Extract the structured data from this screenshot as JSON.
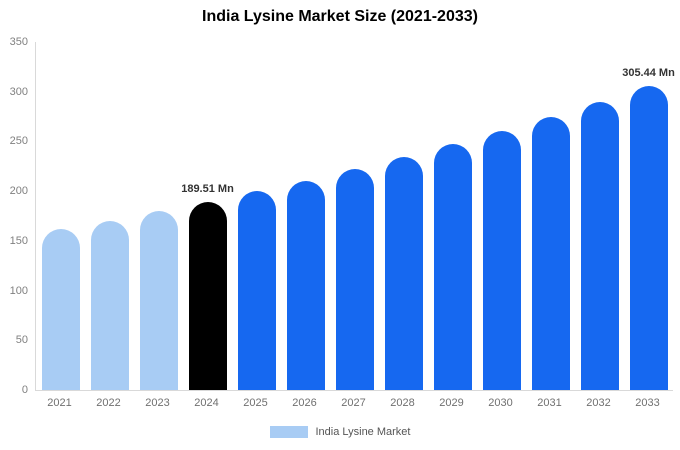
{
  "title": "India Lysine Market Size (2021-2033)",
  "legend": {
    "label": "India Lysine Market",
    "swatch_color": "#a8ccf4"
  },
  "colors": {
    "light_blue": "#a8ccf4",
    "highlight_black": "#000000",
    "blue": "#1668f0",
    "axis_line": "#d9d9d9",
    "tick_text": "#808080",
    "annotation_text": "#333333"
  },
  "chart_data": {
    "type": "bar",
    "title": "India Lysine Market Size (2021-2033)",
    "xlabel": "",
    "ylabel": "",
    "categories": [
      "2021",
      "2022",
      "2023",
      "2024",
      "2025",
      "2026",
      "2027",
      "2028",
      "2029",
      "2030",
      "2031",
      "2032",
      "2033"
    ],
    "values": [
      161.6,
      170.4,
      179.7,
      189.51,
      199.8,
      210.7,
      222.2,
      234.3,
      247.1,
      260.5,
      274.7,
      289.7,
      305.44
    ],
    "unit": "Mn",
    "ylim": [
      0,
      350
    ],
    "yticks": [
      0,
      50,
      100,
      150,
      200,
      250,
      300,
      350
    ],
    "grid": false,
    "legend_position": "bottom",
    "bar_colors": [
      "#a8ccf4",
      "#a8ccf4",
      "#a8ccf4",
      "#000000",
      "#1668f0",
      "#1668f0",
      "#1668f0",
      "#1668f0",
      "#1668f0",
      "#1668f0",
      "#1668f0",
      "#1668f0",
      "#1668f0"
    ],
    "annotations": [
      {
        "category": "2024",
        "text": "189.51 Mn"
      },
      {
        "category": "2033",
        "text": "305.44 Mn"
      }
    ]
  }
}
